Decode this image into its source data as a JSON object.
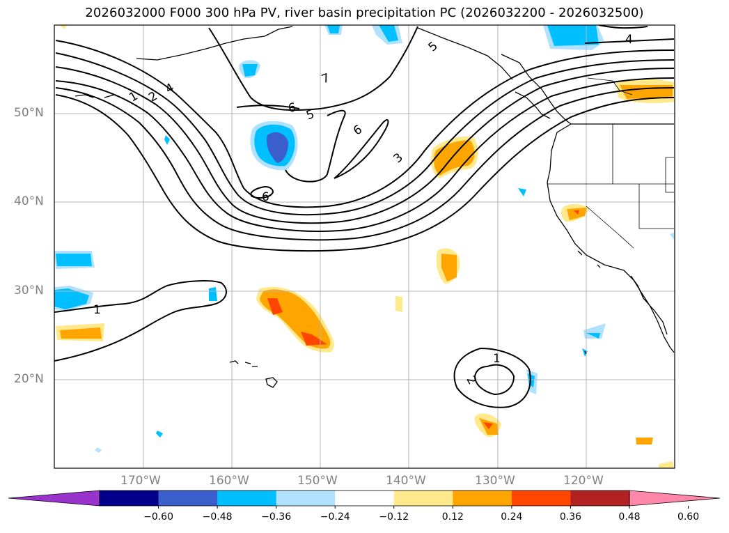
{
  "title": "2026032000 F000 300 hPa PV, river basin precipitation PC (2026032200 - 2026032500)",
  "lat_labels": [
    "50°N",
    "40°N",
    "30°N",
    "20°N"
  ],
  "lon_labels": [
    "170°W",
    "160°W",
    "150°W",
    "140°W",
    "130°W",
    "120°W"
  ],
  "contour_labels": [
    "1",
    "2",
    "4",
    "7",
    "6",
    "5",
    "6",
    "3",
    "6",
    "5",
    "4",
    "1",
    "1",
    "2"
  ],
  "colorbar": {
    "ticks": [
      "−0.60",
      "−0.48",
      "−0.36",
      "−0.24",
      "−0.12",
      "0.12",
      "0.24",
      "0.36",
      "0.48",
      "0.60"
    ],
    "colors": [
      "#9933cc",
      "#00008b",
      "#3a5fcd",
      "#00bfff",
      "#b0e2ff",
      "#ffffff",
      "#ffe98a",
      "#ffa500",
      "#ff4500",
      "#b22222",
      "#ff88aa"
    ]
  },
  "colors": {
    "frame": "#000000",
    "grid": "#b4b4b4",
    "coast": "#000000",
    "contour": "#000000"
  }
}
